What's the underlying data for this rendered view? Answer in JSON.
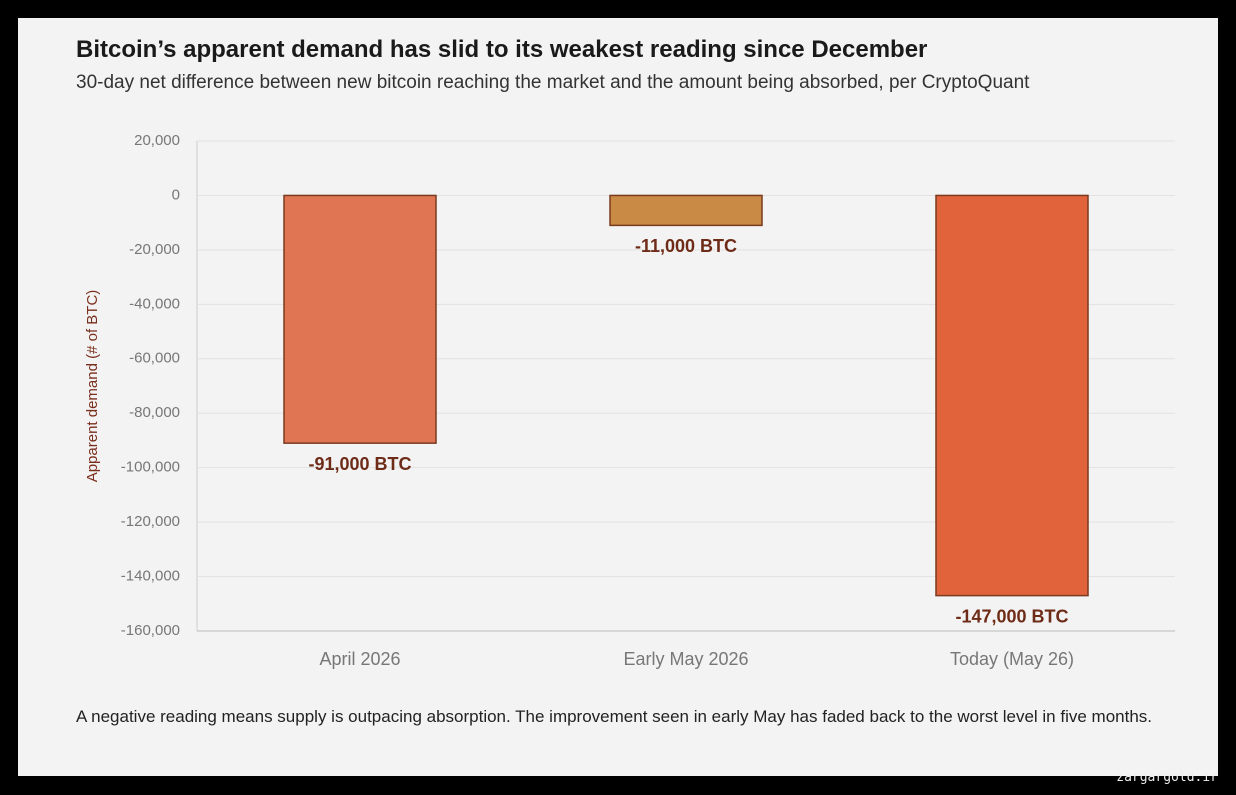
{
  "chart_data": {
    "type": "bar",
    "title": "Bitcoin’s apparent demand has slid to its weakest reading since December",
    "subtitle": "30-day net difference between new bitcoin reaching the market and the amount being absorbed, per CryptoQuant",
    "y_label": "Apparent demand (# of BTC)",
    "categories": [
      "April 2026",
      "Early May 2026",
      "Today (May 26)"
    ],
    "values": [
      -91000,
      -11000,
      -147000
    ],
    "value_labels": [
      "-91,000 BTC",
      "-11,000 BTC",
      "-147,000 BTC"
    ],
    "colors": [
      "#e07553",
      "#c98a45",
      "#e0633c"
    ],
    "ylim": [
      -160000,
      20000
    ],
    "yticks": [
      {
        "value": 20000,
        "label": "20,000"
      },
      0,
      {
        "value": -20000,
        "label": "-20,000"
      },
      {
        "value": -40000,
        "label": "-40,000"
      },
      {
        "value": -60000,
        "label": "-60,000"
      },
      {
        "value": -80000,
        "label": "-80,000"
      },
      {
        "value": -100000,
        "label": "-100,000"
      },
      {
        "value": -120000,
        "label": "-120,000"
      },
      {
        "value": -140000,
        "label": "-140,000"
      },
      {
        "value": -160000,
        "label": "-160,000"
      }
    ],
    "grid": true,
    "note": "A negative reading means supply is outpacing absorption. The improvement seen in early May has faded back to the worst level in five months.",
    "watermark": "zargargold.ir"
  }
}
